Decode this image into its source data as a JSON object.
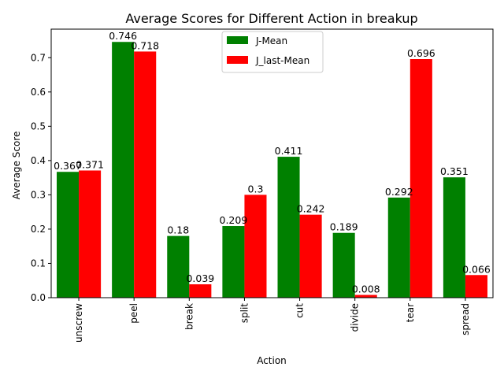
{
  "chart_data": {
    "type": "bar",
    "title": "Average Scores for Different Action in breakup",
    "xlabel": "Action",
    "ylabel": "Average Score",
    "categories": [
      "unscrew",
      "peel",
      "break",
      "split",
      "cut",
      "divide",
      "tear",
      "spread"
    ],
    "series": [
      {
        "name": "J-Mean",
        "color": "#008000",
        "values": [
          0.367,
          0.746,
          0.18,
          0.209,
          0.411,
          0.189,
          0.292,
          0.351
        ],
        "labels": [
          "0.367",
          "0.746",
          "0.18",
          "0.209",
          "0.411",
          "0.189",
          "0.292",
          "0.351"
        ]
      },
      {
        "name": "J_last-Mean",
        "color": "#ff0000",
        "values": [
          0.371,
          0.718,
          0.039,
          0.3,
          0.242,
          0.008,
          0.696,
          0.066
        ],
        "labels": [
          "0.371",
          "0.718",
          "0.039",
          "0.3",
          "0.242",
          "0.008",
          "0.696",
          "0.066"
        ]
      }
    ],
    "ylim": [
      0,
      0.7833
    ],
    "yticks": [
      0.0,
      0.1,
      0.2,
      0.3,
      0.4,
      0.5,
      0.6,
      0.7
    ],
    "ytick_labels": [
      "0.0",
      "0.1",
      "0.2",
      "0.3",
      "0.4",
      "0.5",
      "0.6",
      "0.7"
    ],
    "grid": false,
    "legend_position": "top-center"
  }
}
